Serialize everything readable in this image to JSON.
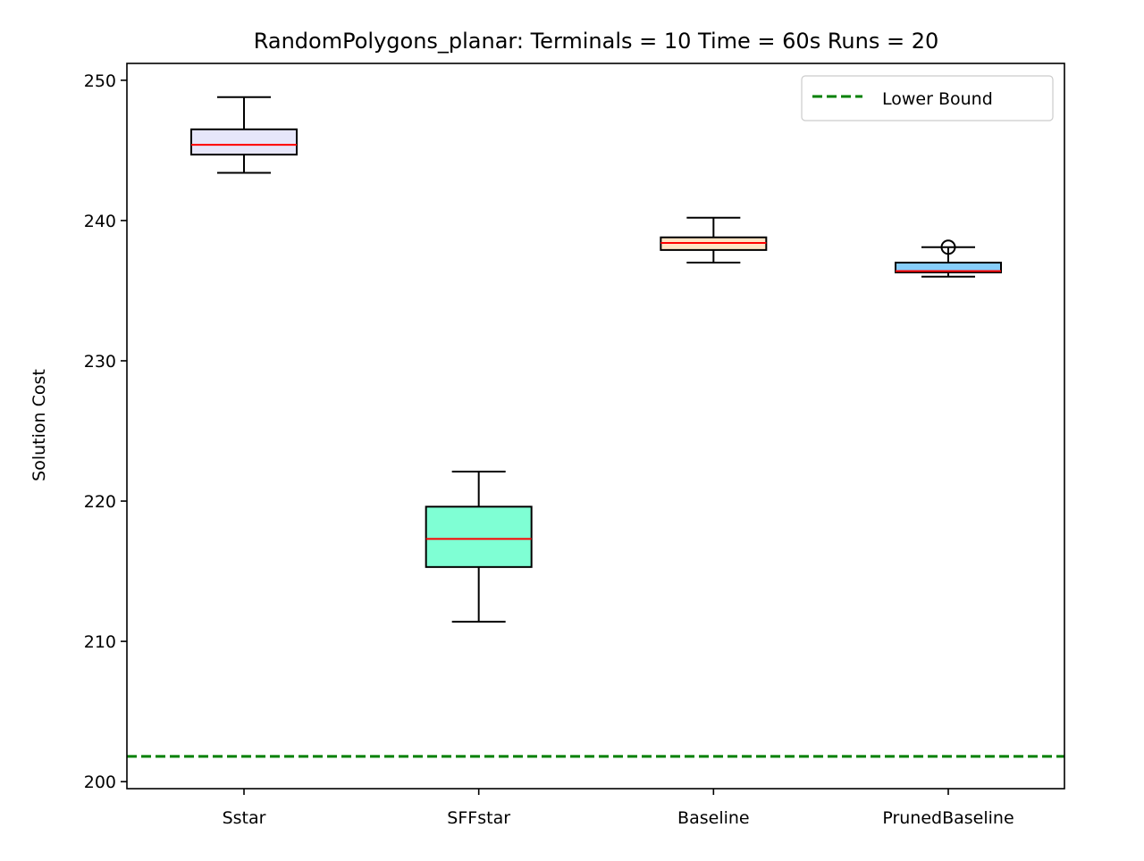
{
  "chart_data": {
    "type": "boxplot",
    "title": "RandomPolygons_planar:  Terminals = 10  Time = 60s  Runs = 20",
    "xlabel": "",
    "ylabel": "Solution Cost",
    "ylim": [
      199.5,
      251.2
    ],
    "yticks": [
      200,
      210,
      220,
      230,
      240,
      250
    ],
    "categories": [
      "Sstar",
      "SFFstar",
      "Baseline",
      "PrunedBaseline"
    ],
    "boxes": [
      {
        "category": "Sstar",
        "whisker_low": 243.4,
        "q1": 244.7,
        "median": 245.4,
        "q3": 246.5,
        "whisker_high": 248.8,
        "outliers": [],
        "fill": "#e6e6fa"
      },
      {
        "category": "SFFstar",
        "whisker_low": 211.4,
        "q1": 215.3,
        "median": 217.3,
        "q3": 219.6,
        "whisker_high": 222.1,
        "outliers": [],
        "fill": "#7fffd4"
      },
      {
        "category": "Baseline",
        "whisker_low": 237.0,
        "q1": 237.9,
        "median": 238.4,
        "q3": 238.8,
        "whisker_high": 240.2,
        "outliers": [],
        "fill": "#ffe4c4"
      },
      {
        "category": "PrunedBaseline",
        "whisker_low": 236.0,
        "q1": 236.3,
        "median": 236.4,
        "q3": 237.0,
        "whisker_high": 238.1,
        "outliers": [
          238.1
        ],
        "fill": "#87cefa"
      }
    ],
    "lower_bound": {
      "value": 201.8,
      "label": "Lower Bound",
      "color": "#008000",
      "style": "dashed"
    },
    "median_color": "#ff0000",
    "grid": false,
    "legend_position": "top-right"
  }
}
